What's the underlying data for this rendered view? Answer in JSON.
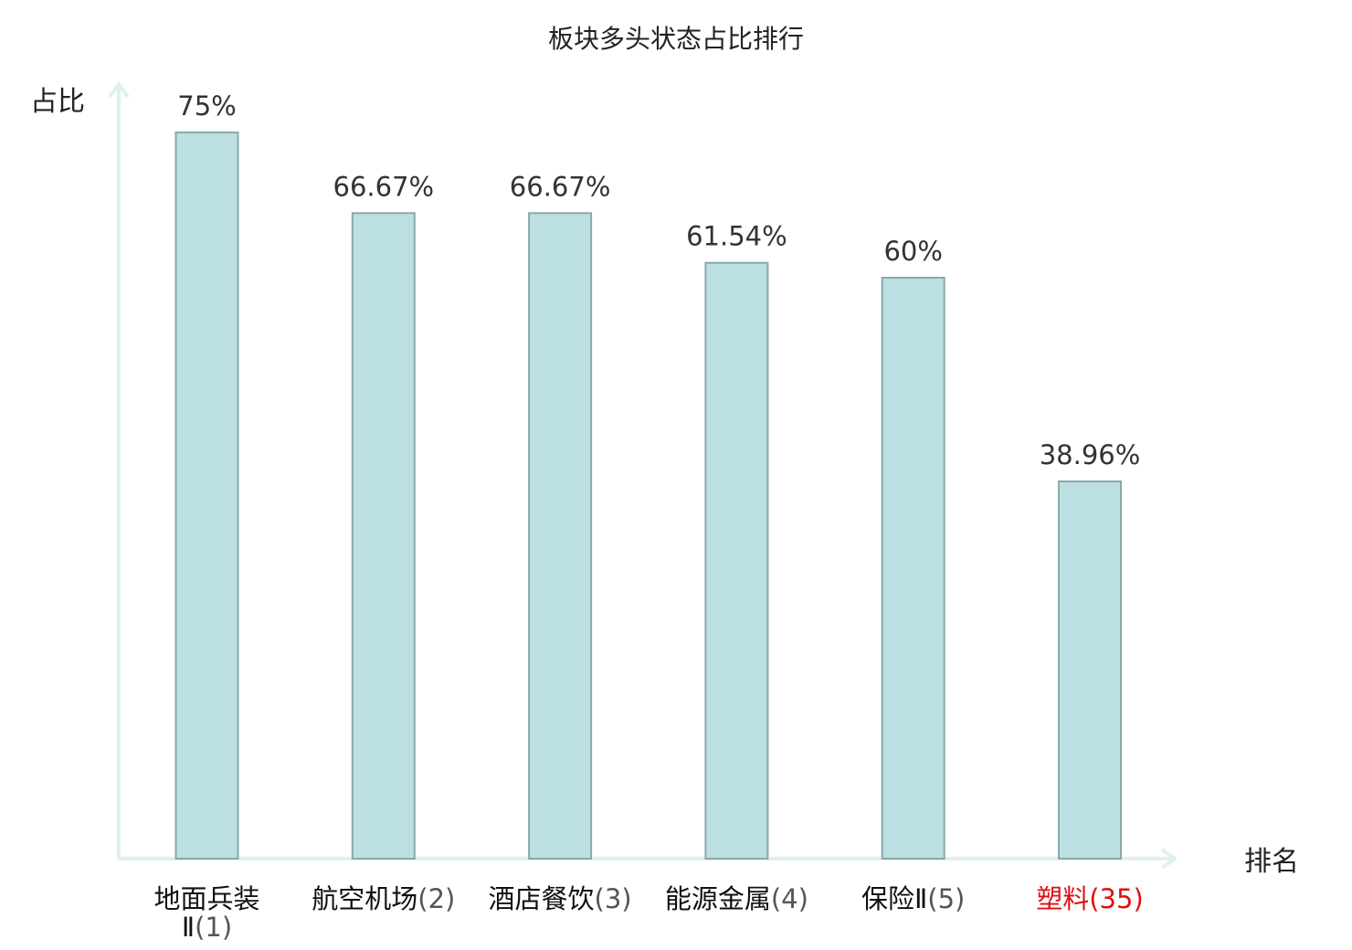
{
  "chart_data": {
    "type": "bar",
    "title": "板块多头状态占比排行",
    "xlabel": "排名",
    "ylabel": "占比",
    "ylim": [
      0,
      80
    ],
    "grid": false,
    "categories": [
      {
        "name": "地面兵装Ⅱ",
        "rank": "(1)",
        "highlight": false
      },
      {
        "name": "航空机场",
        "rank": "(2)",
        "highlight": false
      },
      {
        "name": "酒店餐饮",
        "rank": "(3)",
        "highlight": false
      },
      {
        "name": "能源金属",
        "rank": "(4)",
        "highlight": false
      },
      {
        "name": "保险Ⅱ",
        "rank": "(5)",
        "highlight": false
      },
      {
        "name": "塑料",
        "rank": "(35)",
        "highlight": true
      }
    ],
    "values": [
      75,
      66.67,
      66.67,
      61.54,
      60,
      38.96
    ],
    "value_labels": [
      "75%",
      "66.67%",
      "66.67%",
      "61.54%",
      "60%",
      "38.96%"
    ]
  },
  "colors": {
    "bar_fill": "#bce0e2",
    "bar_stroke": "#8aa8aa",
    "axis": "#dff1ef",
    "highlight": "#e01010",
    "text": "#222222"
  }
}
